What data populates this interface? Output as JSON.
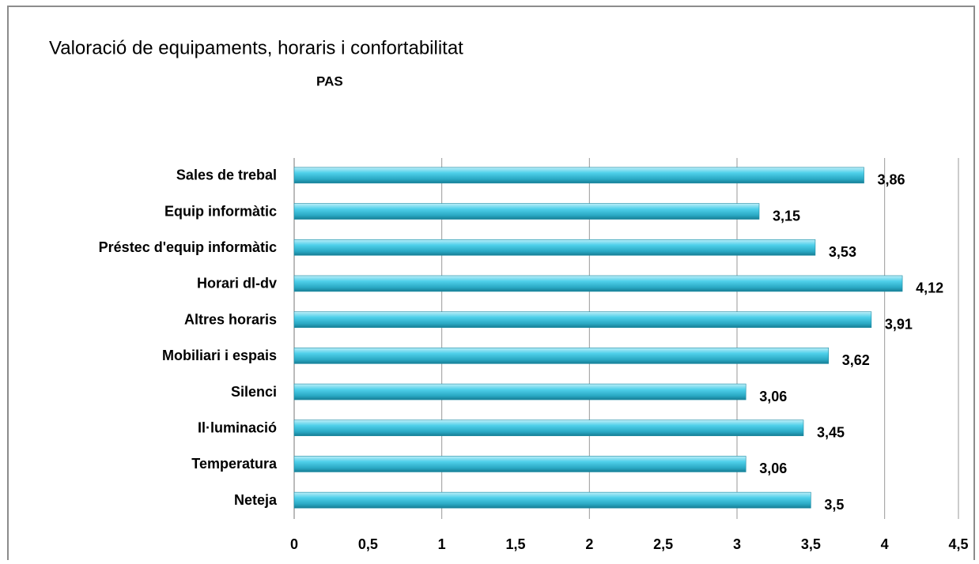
{
  "chart_data": {
    "type": "hbar",
    "title": "Valoració de equipaments, horaris  i confortabilitat",
    "subtitle": "PAS",
    "categories": [
      "Sales de trebal",
      "Equip informàtic",
      "Préstec d'equip informàtic",
      "Horari dl-dv",
      "Altres horaris",
      "Mobiliari i espais",
      "Silenci",
      "Il·luminació",
      "Temperatura",
      "Neteja"
    ],
    "values": [
      3.86,
      3.15,
      3.53,
      4.12,
      3.91,
      3.62,
      3.06,
      3.45,
      3.06,
      3.5
    ],
    "value_labels": [
      "3,86",
      "3,15",
      "3,53",
      "4,12",
      "3,91",
      "3,62",
      "3,06",
      "3,45",
      "3,06",
      "3,5"
    ],
    "color": "#3cc3df",
    "xlim": [
      0,
      4.5
    ],
    "xticks": [
      0,
      {
        "value": 0.5,
        "label": "0,5"
      },
      1,
      {
        "value": 1.5,
        "label": "1,5"
      },
      2,
      {
        "value": 2.5,
        "label": "2,5"
      },
      3,
      {
        "value": 3.5,
        "label": "3,5"
      },
      4,
      {
        "value": 4.5,
        "label": "4,5"
      }
    ],
    "grid": true
  }
}
